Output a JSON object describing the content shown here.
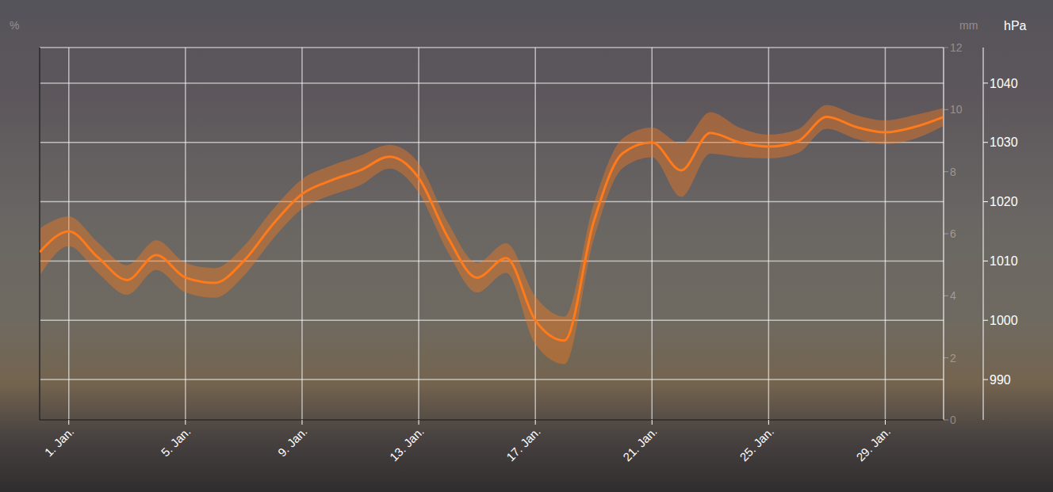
{
  "chart_data": {
    "type": "line",
    "x": [
      0,
      1,
      2,
      3,
      4,
      5,
      6,
      7,
      8,
      9,
      10,
      11,
      12,
      13,
      14,
      15,
      16,
      17,
      18,
      19,
      20,
      21,
      22,
      23,
      24,
      25,
      26,
      27,
      28,
      29,
      30,
      31
    ],
    "xlim": [
      0,
      31
    ],
    "xticks": [
      {
        "value": 1,
        "label": "1. Jan."
      },
      {
        "value": 5,
        "label": "5. Jan."
      },
      {
        "value": 9,
        "label": "9. Jan."
      },
      {
        "value": 13,
        "label": "13. Jan."
      },
      {
        "value": 17,
        "label": "17. Jan."
      },
      {
        "value": 21,
        "label": "21. Jan."
      },
      {
        "value": 25,
        "label": "25. Jan."
      },
      {
        "value": 29,
        "label": "29. Jan."
      }
    ],
    "ylim": [
      983.2,
      1046
    ],
    "yticks": [
      990,
      1000,
      1010,
      1020,
      1030,
      1040
    ],
    "y_label": "hPa",
    "y2lim": [
      0,
      12
    ],
    "y2ticks": [
      0,
      2,
      4,
      6,
      8,
      10,
      12
    ],
    "y2_label": "mm",
    "y3_label": "%",
    "grid": true,
    "series": [
      {
        "color": "#ff7a1a",
        "values": [
          1011.5,
          1015,
          1010.6,
          1006.8,
          1011,
          1007.2,
          1006.3,
          1010,
          1016.2,
          1021.3,
          1023.6,
          1025.3,
          1027.6,
          1024,
          1014,
          1007.2,
          1010.5,
          1000,
          996.6,
          1016.6,
          1028.2,
          1030,
          1025.3,
          1031.6,
          1030,
          1029.3,
          1030.2,
          1034.3,
          1032.6,
          1031.7,
          1032.6,
          1034.3
        ],
        "band_low": [
          1007.5,
          1012.5,
          1008,
          1004.3,
          1008.5,
          1004.7,
          1003.8,
          1007.5,
          1013.7,
          1018.8,
          1021.1,
          1022.8,
          1025.6,
          1021.5,
          1011.5,
          1004.7,
          1008,
          996,
          992.6,
          1013.6,
          1025.7,
          1027.5,
          1020.8,
          1028.1,
          1027.5,
          1027.3,
          1028.2,
          1032.3,
          1030.6,
          1029.7,
          1030.6,
          1032.8
        ],
        "band_high": [
          1015.5,
          1017.5,
          1013.1,
          1009.3,
          1013.5,
          1009.7,
          1008.8,
          1012.5,
          1018.7,
          1023.8,
          1026.1,
          1027.8,
          1029.6,
          1026.5,
          1016.5,
          1009.7,
          1013,
          1004,
          1000.6,
          1019.6,
          1030.7,
          1032.5,
          1029.8,
          1035.1,
          1032.5,
          1031.3,
          1032.2,
          1036.3,
          1034.6,
          1033.7,
          1034.6,
          1035.8
        ]
      }
    ]
  }
}
